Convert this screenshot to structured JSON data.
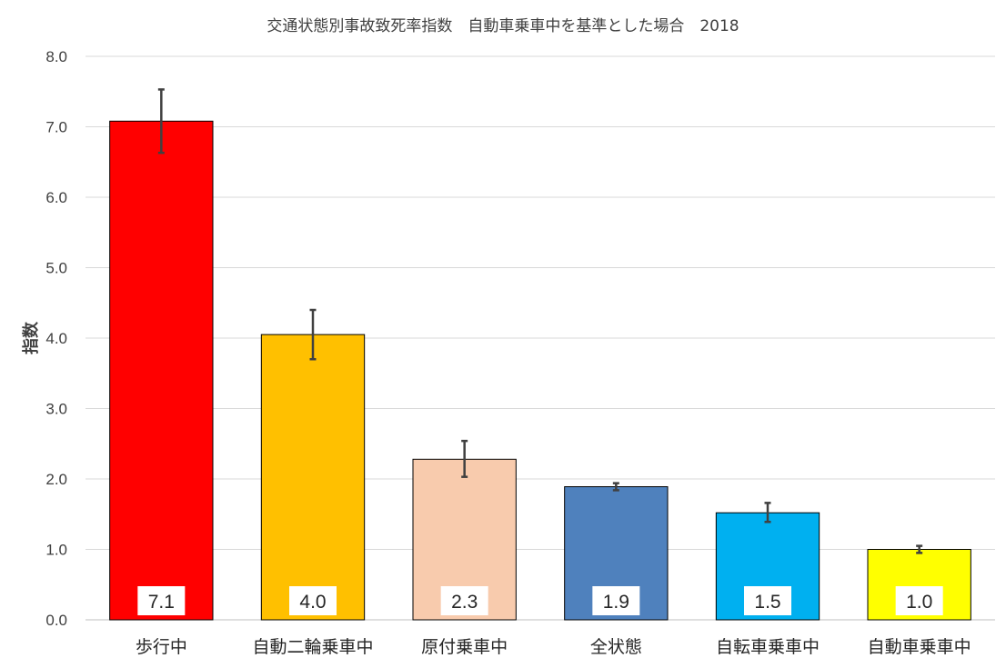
{
  "chart_data": {
    "type": "bar",
    "title": "交通状態別事故致死率指数　自動車乗車中を基準とした場合　2018",
    "xlabel": "",
    "ylabel": "指数",
    "ylim": [
      0,
      8
    ],
    "yticks": [
      "0.0",
      "1.0",
      "2.0",
      "3.0",
      "4.0",
      "5.0",
      "6.0",
      "7.0",
      "8.0"
    ],
    "grid": true,
    "legend": "none",
    "categories": [
      "歩行中",
      "自動二輪乗車中",
      "原付乗車中",
      "全状態",
      "自転車乗車中",
      "自動車乗車中"
    ],
    "values": [
      7.08,
      4.05,
      2.28,
      1.89,
      1.52,
      1.0
    ],
    "data_labels": [
      "7.1",
      "4.0",
      "2.3",
      "1.9",
      "1.5",
      "1.0"
    ],
    "error_low": [
      6.63,
      3.7,
      2.03,
      1.84,
      1.39,
      0.95
    ],
    "error_high": [
      7.53,
      4.4,
      2.54,
      1.94,
      1.66,
      1.05
    ],
    "colors": [
      "#FF0000",
      "#FFC000",
      "#F8CBAD",
      "#4F81BD",
      "#00B0F0",
      "#FFFF00"
    ],
    "error_bar_color": "#404040",
    "data_label_background": "#FFFFFF"
  }
}
